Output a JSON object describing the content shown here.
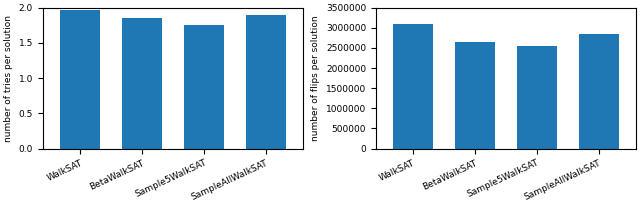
{
  "chart_data": [
    {
      "type": "bar",
      "categories": [
        "WalkSAT",
        "BetaWalkSAT",
        "Sample5WalkSAT",
        "SampleAllWalkSAT"
      ],
      "values": [
        1.96,
        1.85,
        1.75,
        1.9
      ],
      "y_label": "number of tries per solution",
      "ylim": [
        0.0,
        2.0
      ],
      "yticks": [
        {
          "value": 0,
          "label": "0.0"
        },
        0.5,
        {
          "value": 1,
          "label": "1.0"
        },
        1.5,
        {
          "value": 2,
          "label": "2.0"
        }
      ]
    },
    {
      "type": "bar",
      "categories": [
        "WalkSAT",
        "BetaWalkSAT",
        "Sample5WalkSAT",
        "SampleAllWalkSAT"
      ],
      "values": [
        3100000,
        2650000,
        2550000,
        2850000
      ],
      "y_label": "number of flips per solution",
      "ylim": [
        0,
        3500000
      ],
      "yticks": [
        0,
        500000,
        1000000,
        1500000,
        2000000,
        2500000,
        3000000,
        3500000
      ]
    }
  ]
}
